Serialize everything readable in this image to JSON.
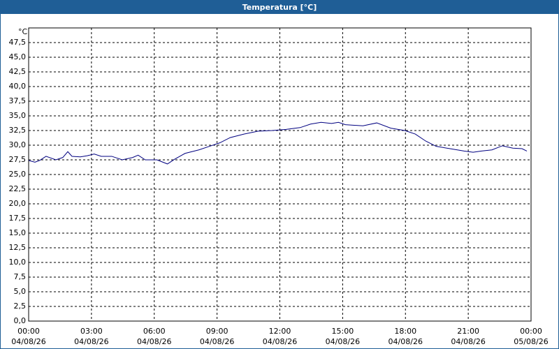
{
  "chart_data": {
    "type": "line",
    "title": "Temperatura [°C]",
    "y_unit": "°C",
    "x": [
      0,
      0.3,
      0.53,
      0.83,
      1.3,
      1.63,
      1.87,
      2.07,
      2.47,
      2.8,
      3.13,
      3.47,
      3.97,
      4.47,
      4.97,
      5.23,
      5.57,
      6.13,
      6.63,
      6.97,
      7.47,
      8.13,
      8.63,
      9.13,
      9.63,
      10.3,
      10.97,
      11.63,
      12.3,
      12.97,
      13.47,
      13.97,
      14.47,
      14.8,
      15.13,
      15.97,
      16.63,
      17.3,
      17.97,
      18.47,
      18.97,
      19.47,
      20.13,
      20.8,
      21.23,
      21.63,
      22.13,
      22.63,
      23.13,
      23.57,
      23.8
    ],
    "series": [
      {
        "name": "Temperatura",
        "color": "#000080",
        "values": [
          27.4,
          27.1,
          27.4,
          28.1,
          27.5,
          27.9,
          28.9,
          28.1,
          28.0,
          28.2,
          28.5,
          28.1,
          28.1,
          27.5,
          27.9,
          28.3,
          27.5,
          27.5,
          26.8,
          27.6,
          28.6,
          29.2,
          29.8,
          30.4,
          31.3,
          31.9,
          32.4,
          32.5,
          32.7,
          33.0,
          33.6,
          33.9,
          33.7,
          33.9,
          33.5,
          33.3,
          33.8,
          32.9,
          32.5,
          31.9,
          30.7,
          29.8,
          29.4,
          29.0,
          28.8,
          29.0,
          29.2,
          29.9,
          29.5,
          29.4,
          29.0
        ]
      }
    ],
    "xlim": [
      0,
      24
    ],
    "xticks": [
      {
        "value": 0,
        "label": "00:00"
      },
      {
        "value": 3,
        "label": "03:00"
      },
      {
        "value": 6,
        "label": "06:00"
      },
      {
        "value": 9,
        "label": "09:00"
      },
      {
        "value": 12,
        "label": "12:00"
      },
      {
        "value": 15,
        "label": "15:00"
      },
      {
        "value": 18,
        "label": "18:00"
      },
      {
        "value": 21,
        "label": "21:00"
      },
      {
        "value": 24,
        "label": "00:00"
      }
    ],
    "xtick_dates": [
      "04/08/26",
      "04/08/26",
      "04/08/26",
      "04/08/26",
      "04/08/26",
      "04/08/26",
      "04/08/26",
      "04/08/26",
      "05/08/26"
    ],
    "ylim": [
      0,
      50
    ],
    "yticks": [
      {
        "value": 0,
        "label": "0,0"
      },
      {
        "value": 2.5,
        "label": "2,5"
      },
      {
        "value": 5,
        "label": "5,0"
      },
      {
        "value": 7.5,
        "label": "7,5"
      },
      {
        "value": 10,
        "label": "10,0"
      },
      {
        "value": 12.5,
        "label": "12,5"
      },
      {
        "value": 15,
        "label": "15,0"
      },
      {
        "value": 17.5,
        "label": "17,5"
      },
      {
        "value": 20,
        "label": "20,0"
      },
      {
        "value": 22.5,
        "label": "22,5"
      },
      {
        "value": 25,
        "label": "25,0"
      },
      {
        "value": 27.5,
        "label": "27,5"
      },
      {
        "value": 30,
        "label": "30,0"
      },
      {
        "value": 32.5,
        "label": "32,5"
      },
      {
        "value": 35,
        "label": "35,0"
      },
      {
        "value": 37.5,
        "label": "37,5"
      },
      {
        "value": 40,
        "label": "40,0"
      },
      {
        "value": 42.5,
        "label": "42,5"
      },
      {
        "value": 45,
        "label": "45,0"
      },
      {
        "value": 47.5,
        "label": "47,5"
      }
    ],
    "grid": true
  }
}
